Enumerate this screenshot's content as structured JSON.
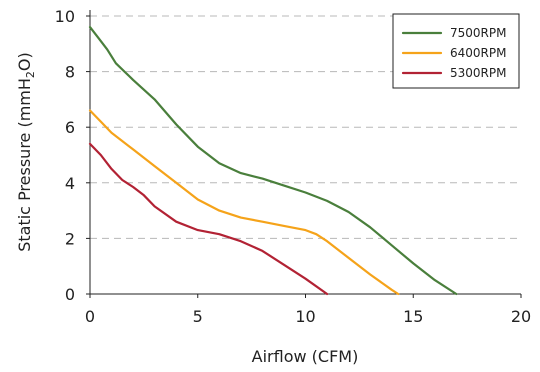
{
  "chart_data": {
    "type": "line",
    "xlabel": "Airflow (CFM)",
    "ylabel": {
      "prefix": "Static Pressure (mmH",
      "subscript": "2",
      "suffix": "O)"
    },
    "xlim": [
      0,
      20
    ],
    "ylim": [
      0,
      10
    ],
    "xticks": [
      0,
      5,
      10,
      15,
      20
    ],
    "yticks": [
      0,
      2,
      4,
      6,
      8,
      10
    ],
    "grid": "horizontal dashed",
    "legend_position": "top-right",
    "series": [
      {
        "name": "7500RPM",
        "color": "#4a7f3c",
        "points": [
          [
            0,
            9.6
          ],
          [
            0.4,
            9.2
          ],
          [
            0.8,
            8.8
          ],
          [
            1.2,
            8.3
          ],
          [
            2,
            7.7
          ],
          [
            3,
            7.0
          ],
          [
            4,
            6.1
          ],
          [
            5,
            5.3
          ],
          [
            6,
            4.7
          ],
          [
            7,
            4.35
          ],
          [
            8,
            4.15
          ],
          [
            9,
            3.9
          ],
          [
            10,
            3.65
          ],
          [
            11,
            3.35
          ],
          [
            12,
            2.95
          ],
          [
            13,
            2.4
          ],
          [
            14,
            1.75
          ],
          [
            15,
            1.1
          ],
          [
            16,
            0.5
          ],
          [
            17,
            0
          ]
        ]
      },
      {
        "name": "6400RPM",
        "color": "#f5a31a",
        "points": [
          [
            0,
            6.6
          ],
          [
            0.5,
            6.2
          ],
          [
            1,
            5.8
          ],
          [
            2,
            5.2
          ],
          [
            3,
            4.6
          ],
          [
            4,
            4.0
          ],
          [
            5,
            3.4
          ],
          [
            6,
            3.0
          ],
          [
            7,
            2.75
          ],
          [
            8,
            2.6
          ],
          [
            9,
            2.45
          ],
          [
            10,
            2.3
          ],
          [
            10.5,
            2.15
          ],
          [
            11,
            1.9
          ],
          [
            12,
            1.3
          ],
          [
            13,
            0.7
          ],
          [
            14,
            0.15
          ],
          [
            14.3,
            0
          ]
        ]
      },
      {
        "name": "5300RPM",
        "color": "#b22234",
        "points": [
          [
            0,
            5.4
          ],
          [
            0.5,
            5.0
          ],
          [
            1,
            4.5
          ],
          [
            1.5,
            4.1
          ],
          [
            2,
            3.85
          ],
          [
            2.5,
            3.55
          ],
          [
            3,
            3.15
          ],
          [
            4,
            2.6
          ],
          [
            5,
            2.3
          ],
          [
            6,
            2.15
          ],
          [
            7,
            1.9
          ],
          [
            8,
            1.55
          ],
          [
            9,
            1.05
          ],
          [
            10,
            0.55
          ],
          [
            11,
            0
          ]
        ]
      }
    ]
  }
}
